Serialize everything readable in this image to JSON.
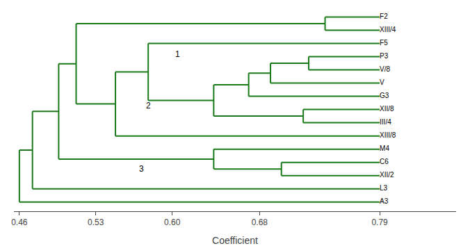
{
  "chart_data": {
    "type": "dendrogram",
    "categories": [
      "F2",
      "XIII/4",
      "F5",
      "P3",
      "V/8",
      "V",
      "G3",
      "XII/8",
      "III/4",
      "XIII/8",
      "M4",
      "C6",
      "XII/2",
      "L3",
      "A3"
    ],
    "merges": [
      {
        "left": 3,
        "right": 4,
        "height": 0.725
      },
      {
        "left": 15,
        "right": 5,
        "height": 0.69
      },
      {
        "left": 16,
        "right": 6,
        "height": 0.67
      },
      {
        "left": 7,
        "right": 8,
        "height": 0.72
      },
      {
        "left": 17,
        "right": 18,
        "height": 0.638
      },
      {
        "left": 2,
        "right": 19,
        "height": 0.578
      },
      {
        "left": 9,
        "right": 20,
        "height": 0.548
      },
      {
        "left": 0,
        "right": 1,
        "height": 0.74
      },
      {
        "left": 22,
        "right": 21,
        "height": 0.512
      },
      {
        "left": 11,
        "right": 12,
        "height": 0.7
      },
      {
        "left": 10,
        "right": 24,
        "height": 0.638
      },
      {
        "left": 25,
        "right": 23,
        "height": 0.496
      },
      {
        "left": 13,
        "right": 26,
        "height": 0.472
      },
      {
        "left": 14,
        "right": 27,
        "height": 0.46
      }
    ],
    "annotations": [
      {
        "text": "1",
        "x": 0.605,
        "y": 11.2
      },
      {
        "text": "2",
        "x": 0.578,
        "y": 7.3
      },
      {
        "text": "3",
        "x": 0.572,
        "y": 2.5
      }
    ],
    "xlabel": "Coefficient",
    "xlim": [
      0.455,
      0.86
    ],
    "xticks": [
      0.46,
      0.53,
      {
        "value": 0.6,
        "label": "0.60"
      },
      0.68,
      0.79
    ],
    "color": "#1a7a1a",
    "grid": false,
    "tick_labels": "x"
  }
}
